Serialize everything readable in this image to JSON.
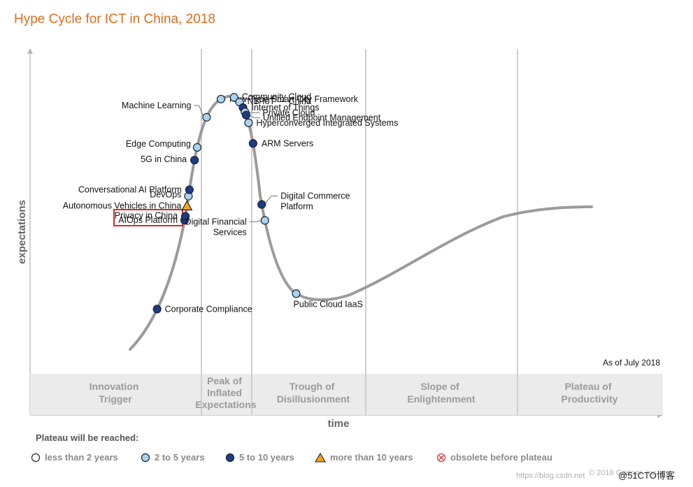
{
  "chart_data": {
    "type": "scatter",
    "title": "Hype Cycle for ICT in China, 2018",
    "xlabel": "time",
    "ylabel": "expectations",
    "as_of": "As of July 2018",
    "phases": [
      [
        "Innovation",
        "Trigger"
      ],
      [
        "Peak of",
        "Inflated",
        "Expectations"
      ],
      [
        "Trough of",
        "Disillusionment"
      ],
      [
        "Slope of",
        "Enlightenment"
      ],
      [
        "Plateau of",
        "Productivity"
      ]
    ],
    "categories": {
      "lt2": "less than 2 years",
      "2to5": "2 to 5 years",
      "5to10": "5 to 10 years",
      "gt10": "more than 10 years",
      "obsolete": "obsolete before plateau"
    },
    "points": [
      {
        "name": "Corporate Compliance",
        "t": 0.06,
        "cat": "5to10"
      },
      {
        "name": "AIOps Platform",
        "t": 0.175,
        "cat": "5to10",
        "highlighted": true
      },
      {
        "name": "Privacy in China",
        "t": 0.18,
        "cat": "5to10"
      },
      {
        "name": "Autonomous Vehicles in China",
        "t": 0.193,
        "cat": "gt10"
      },
      {
        "name": "DevOps",
        "t": 0.205,
        "cat": "2to5"
      },
      {
        "name": "Conversational AI Platform",
        "t": 0.213,
        "cat": "5to10"
      },
      {
        "name": "5G in China",
        "t": 0.25,
        "cat": "5to10"
      },
      {
        "name": "Edge Computing",
        "t": 0.266,
        "cat": "2to5"
      },
      {
        "name": "Machine Learning",
        "t": 0.305,
        "cat": "2to5"
      },
      {
        "name": "New-Type Smart City Framework",
        "t": 0.334,
        "cat": "2to5"
      },
      {
        "name": "Community Cloud",
        "t": 0.351,
        "cat": "2to5"
      },
      {
        "name": "NB-IoT — China",
        "t": 0.36,
        "cat": "2to5"
      },
      {
        "name": "Internet of Things",
        "t": 0.368,
        "cat": "5to10"
      },
      {
        "name": "Private Cloud",
        "t": 0.374,
        "cat": "2to5"
      },
      {
        "name": "Unified Endpoint Management",
        "t": 0.378,
        "cat": "5to10"
      },
      {
        "name": "Hyperconverged Integrated Systems",
        "t": 0.388,
        "cat": "2to5"
      },
      {
        "name": "ARM Servers",
        "t": 0.414,
        "cat": "5to10"
      },
      {
        "name": "Digital Commerce Platform",
        "t": 0.49,
        "cat": "5to10"
      },
      {
        "name": "Digital Financial Services",
        "t": 0.51,
        "cat": "2to5"
      },
      {
        "name": "Public Cloud IaaS",
        "t": 0.61,
        "cat": "2to5"
      }
    ],
    "legend_title": "Plateau will be reached:",
    "grid": false,
    "legend_position": "bottom"
  },
  "footer": {
    "copyright": "© 2018 Gartner, Inc.",
    "source_url": "https://blog.csdn.net",
    "watermark": "@51CTO博客"
  },
  "colors": {
    "title": "#e06d1f",
    "curve": "#9b9b9b",
    "lt2": "#ffffff",
    "2to5": "#a8d3f2",
    "5to10": "#1b3c8c",
    "gt10": "#f0a424",
    "obsolete": "#d23a3a",
    "highlight_box": "#d42a2a",
    "phase_band": "#ebebeb"
  }
}
